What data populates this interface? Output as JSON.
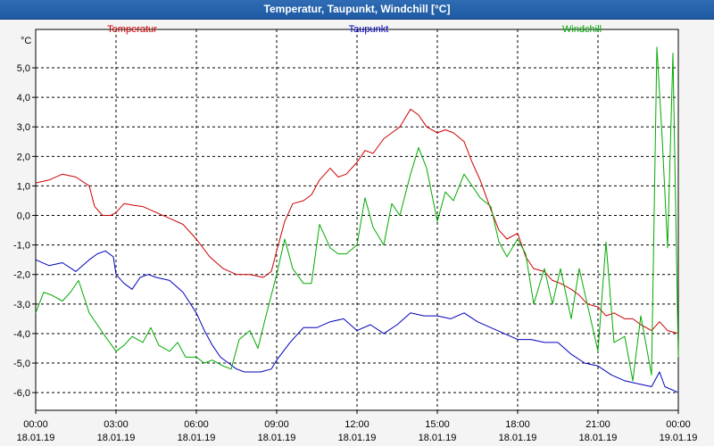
{
  "window": {
    "title": "Temperatur, Taupunkt, Windchill [°C]"
  },
  "chart_data": {
    "type": "line",
    "unit_label": "°C",
    "ylim": [
      -6.6,
      6.3
    ],
    "y_ticks": [
      5.0,
      4.0,
      3.0,
      2.0,
      1.0,
      0.0,
      -1.0,
      -2.0,
      -3.0,
      -4.0,
      -5.0,
      -6.0
    ],
    "y_tick_labels": [
      "5,0",
      "4,0",
      "3,0",
      "2,0",
      "1,0",
      "0,0",
      "-1,0",
      "-2,0",
      "-3,0",
      "-4,0",
      "-5,0",
      "-6,0"
    ],
    "xlim": [
      0,
      24
    ],
    "x_ticks": [
      {
        "h": 0,
        "time": "00:00",
        "date": "18.01.19"
      },
      {
        "h": 3,
        "time": "03:00",
        "date": "18.01.19"
      },
      {
        "h": 6,
        "time": "06:00",
        "date": "18.01.19"
      },
      {
        "h": 9,
        "time": "09:00",
        "date": "18.01.19"
      },
      {
        "h": 12,
        "time": "12:00",
        "date": "18.01.19"
      },
      {
        "h": 15,
        "time": "15:00",
        "date": "18.01.19"
      },
      {
        "h": 18,
        "time": "18:00",
        "date": "18.01.19"
      },
      {
        "h": 21,
        "time": "21:00",
        "date": "18.01.19"
      },
      {
        "h": 24,
        "time": "00:00",
        "date": "19.01.19"
      }
    ],
    "grid": true,
    "series": [
      {
        "name": "Temperatur",
        "color": "#cc0000",
        "x": [
          0,
          0.5,
          1,
          1.5,
          2,
          2.2,
          2.5,
          2.8,
          3,
          3.3,
          3.6,
          4,
          4.5,
          5,
          5.5,
          6,
          6.5,
          7,
          7.5,
          8,
          8.5,
          8.8,
          9,
          9.3,
          9.6,
          10,
          10.3,
          10.6,
          11,
          11.3,
          11.6,
          12,
          12.3,
          12.6,
          13,
          13.3,
          13.6,
          14,
          14.3,
          14.6,
          15,
          15.3,
          15.6,
          16,
          16.3,
          16.6,
          17,
          17.3,
          17.6,
          18,
          18.3,
          18.6,
          19,
          19.3,
          19.6,
          20,
          20.3,
          20.6,
          21,
          21.3,
          21.6,
          22,
          22.3,
          22.6,
          23,
          23.3,
          23.6,
          24
        ],
        "values": [
          1.1,
          1.2,
          1.4,
          1.3,
          1.0,
          0.3,
          0.0,
          0.0,
          0.1,
          0.4,
          0.35,
          0.3,
          0.1,
          -0.1,
          -0.3,
          -0.8,
          -1.4,
          -1.8,
          -2.0,
          -2.0,
          -2.1,
          -1.9,
          -1.2,
          -0.2,
          0.4,
          0.5,
          0.7,
          1.2,
          1.6,
          1.3,
          1.4,
          1.8,
          2.2,
          2.1,
          2.6,
          2.8,
          3.0,
          3.6,
          3.4,
          3.0,
          2.8,
          2.9,
          2.8,
          2.5,
          1.8,
          1.2,
          0.2,
          -0.5,
          -0.8,
          -0.6,
          -1.4,
          -1.8,
          -1.9,
          -2.2,
          -2.3,
          -2.5,
          -2.7,
          -3.0,
          -3.1,
          -3.4,
          -3.3,
          -3.5,
          -3.5,
          -3.7,
          -3.9,
          -3.6,
          -3.9,
          -4.0
        ]
      },
      {
        "name": "Taupunkt",
        "color": "#0000bb",
        "x": [
          0,
          0.5,
          1,
          1.5,
          2,
          2.3,
          2.6,
          2.9,
          3,
          3.3,
          3.6,
          3.9,
          4.2,
          4.5,
          5,
          5.5,
          6,
          6.3,
          6.6,
          6.9,
          7.2,
          7.5,
          7.8,
          8.1,
          8.4,
          8.8,
          9,
          9.5,
          10,
          10.5,
          11,
          11.5,
          12,
          12.5,
          13,
          13.5,
          14,
          14.5,
          15,
          15.5,
          16,
          16.5,
          17,
          17.5,
          18,
          18.5,
          19,
          19.5,
          20,
          20.5,
          21,
          21.5,
          22,
          22.5,
          23,
          23.3,
          23.5,
          24
        ],
        "values": [
          -1.5,
          -1.7,
          -1.6,
          -1.9,
          -1.5,
          -1.3,
          -1.2,
          -1.4,
          -2.0,
          -2.3,
          -2.5,
          -2.1,
          -2.0,
          -2.1,
          -2.2,
          -2.6,
          -3.3,
          -3.9,
          -4.4,
          -4.8,
          -5.0,
          -5.2,
          -5.3,
          -5.3,
          -5.3,
          -5.2,
          -4.9,
          -4.3,
          -3.8,
          -3.8,
          -3.6,
          -3.5,
          -3.9,
          -3.7,
          -4.0,
          -3.7,
          -3.3,
          -3.4,
          -3.4,
          -3.5,
          -3.3,
          -3.6,
          -3.8,
          -4.0,
          -4.2,
          -4.2,
          -4.3,
          -4.3,
          -4.7,
          -5.0,
          -5.1,
          -5.4,
          -5.6,
          -5.7,
          -5.8,
          -5.3,
          -5.8,
          -6.0
        ]
      },
      {
        "name": "Windchill",
        "color": "#00aa00",
        "x": [
          0,
          0.3,
          0.6,
          1,
          1.3,
          1.6,
          2,
          2.3,
          2.6,
          3,
          3.3,
          3.6,
          4,
          4.3,
          4.6,
          5,
          5.3,
          5.6,
          6,
          6.3,
          6.6,
          7,
          7.3,
          7.6,
          8,
          8.3,
          8.6,
          9,
          9.3,
          9.6,
          10,
          10.3,
          10.6,
          11,
          11.3,
          11.6,
          12,
          12.3,
          12.6,
          13,
          13.3,
          13.6,
          14,
          14.3,
          14.6,
          15,
          15.3,
          15.6,
          16,
          16.3,
          16.6,
          17,
          17.3,
          17.6,
          18,
          18.3,
          18.6,
          19,
          19.3,
          19.6,
          20,
          20.3,
          20.6,
          21,
          21.3,
          21.6,
          22,
          22.3,
          22.6,
          23,
          23.2,
          23.4,
          23.6,
          23.8,
          24
        ],
        "values": [
          -3.3,
          -2.6,
          -2.7,
          -2.9,
          -2.6,
          -2.2,
          -3.3,
          -3.7,
          -4.1,
          -4.6,
          -4.4,
          -4.1,
          -4.3,
          -3.8,
          -4.4,
          -4.6,
          -4.3,
          -4.8,
          -4.8,
          -5.0,
          -4.9,
          -5.1,
          -5.2,
          -4.2,
          -3.9,
          -4.5,
          -3.4,
          -2.0,
          -0.8,
          -1.8,
          -2.3,
          -2.3,
          -0.3,
          -1.1,
          -1.3,
          -1.3,
          -1.0,
          0.6,
          -0.4,
          -1.0,
          0.4,
          0.0,
          1.4,
          2.3,
          1.6,
          -0.2,
          0.8,
          0.5,
          1.4,
          1.0,
          0.6,
          0.3,
          -0.9,
          -1.4,
          -0.8,
          -1.3,
          -3.0,
          -1.8,
          -3.0,
          -1.8,
          -3.5,
          -1.8,
          -3.0,
          -4.6,
          -0.9,
          -4.3,
          -4.1,
          -5.6,
          -3.4,
          -5.4,
          5.7,
          2.6,
          -1.1,
          5.5,
          -4.8
        ]
      }
    ]
  }
}
